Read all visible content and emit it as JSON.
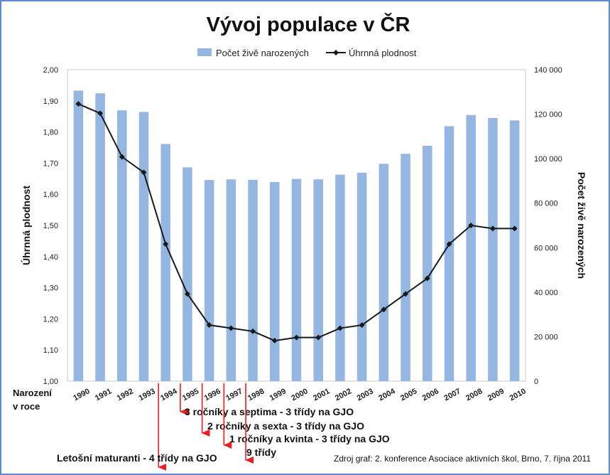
{
  "chart_data": {
    "type": "bar+line",
    "title": "Vývoj populace v ČR",
    "legend": {
      "placement": "top-center",
      "entries": [
        "Počet živě narozených",
        "Úhrnná plodnost"
      ]
    },
    "categories": [
      "1990",
      "1991",
      "1992",
      "1993",
      "1994",
      "1995",
      "1996",
      "1997",
      "1998",
      "1999",
      "2000",
      "2001",
      "2002",
      "2003",
      "2004",
      "2005",
      "2006",
      "2007",
      "2008",
      "2009",
      "2010"
    ],
    "series": [
      {
        "name": "Počet živě narozených",
        "type": "bar",
        "axis": "right",
        "values": [
          130600,
          129400,
          121700,
          121000,
          106600,
          96100,
          90400,
          90700,
          90500,
          89500,
          90900,
          90700,
          92800,
          93700,
          97700,
          102200,
          105800,
          114600,
          119600,
          118300,
          117200
        ]
      },
      {
        "name": "Úhrnná plodnost",
        "type": "line",
        "axis": "left",
        "values": [
          1.89,
          1.86,
          1.72,
          1.67,
          1.44,
          1.28,
          1.18,
          1.17,
          1.16,
          1.13,
          1.14,
          1.14,
          1.17,
          1.18,
          1.23,
          1.28,
          1.33,
          1.44,
          1.5,
          1.49,
          1.49
        ]
      }
    ],
    "left_axis": {
      "label": "Úhrnná plodnost",
      "range": [
        1.0,
        2.0
      ],
      "ticks": [
        "1,00",
        "1,10",
        "1,20",
        "1,30",
        "1,40",
        "1,50",
        "1,60",
        "1,70",
        "1,80",
        "1,90",
        "2,00"
      ]
    },
    "right_axis": {
      "label": "Počet živě narozených",
      "range": [
        0,
        140000
      ],
      "ticks": [
        "0",
        "20 000",
        "40 000",
        "60 000",
        "80 000",
        "100 000",
        "120 000",
        "140 000"
      ]
    },
    "x_axis_label": [
      "Narození",
      "v roce"
    ],
    "grid": false,
    "bar_color": "#95b6e1",
    "line_color": "#1a1a1a",
    "arrow_color": "#ee1c1c",
    "annotations": [
      {
        "year": "1994",
        "text": "Letošní maturanti - 4 třídy na GJO"
      },
      {
        "year": "1995",
        "text": "3 ročníky a septima - 3 třídy na GJO"
      },
      {
        "year": "1996",
        "text": "2 ročníky a sexta - 3 třídy na GJO"
      },
      {
        "year": "1997",
        "text": "1 ročníky a kvinta - 3 třídy na GJO"
      },
      {
        "year": "1998",
        "text": "9 třídy"
      }
    ],
    "source": "Zdroj graf: 2. konference Asociace aktivních škol, Brno, 7. října 2011"
  }
}
